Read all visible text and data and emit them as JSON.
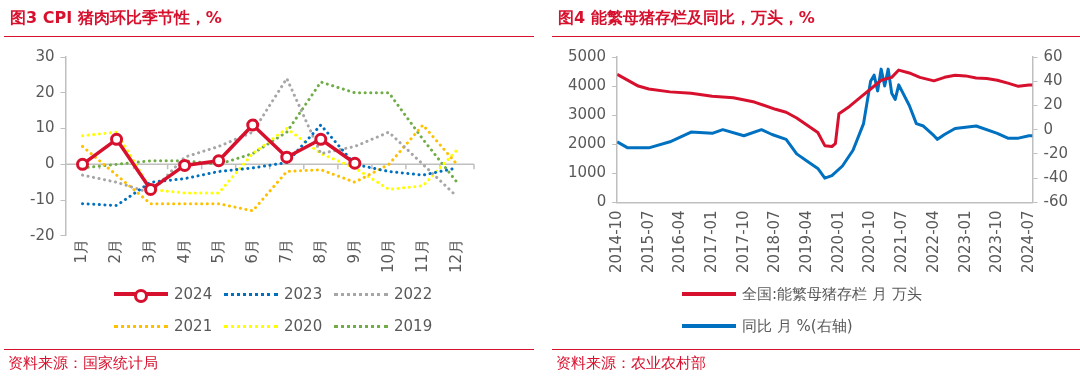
{
  "chart_data": [
    {
      "type": "line",
      "title": "图3 CPI 猪肉环比季节性，%",
      "categories": [
        "1月",
        "2月",
        "3月",
        "4月",
        "5月",
        "6月",
        "7月",
        "8月",
        "9月",
        "10月",
        "11月",
        "12月"
      ],
      "ylim": [
        -20,
        30
      ],
      "yticks": [
        -20,
        -10,
        0,
        10,
        20,
        30
      ],
      "grid": false,
      "legend": "bottom",
      "ref_lines": [
        {
          "axis": "y",
          "value": 0,
          "color": "#bfbfbf"
        }
      ],
      "series": [
        {
          "name": "2024",
          "color": "#d7102e",
          "marker": "circle",
          "line_style": "solid",
          "values": [
            0,
            7,
            -7,
            -0.3,
            1,
            11,
            2,
            7,
            0.3,
            null,
            null,
            null
          ]
        },
        {
          "name": "2023",
          "color": "#0070c0",
          "marker": "none",
          "line_style": "dotted",
          "values": [
            -11,
            -11.5,
            -5,
            -4,
            -2,
            -1,
            0.5,
            11,
            0,
            -2,
            -3,
            -1
          ]
        },
        {
          "name": "2022",
          "color": "#a6a6a6",
          "marker": "none",
          "line_style": "dotted",
          "values": [
            -3,
            -5,
            -8,
            2,
            5,
            9,
            24,
            3,
            5,
            9,
            0,
            -9
          ]
        },
        {
          "name": "2021",
          "color": "#ffc000",
          "marker": "none",
          "line_style": "dotted",
          "values": [
            5,
            -3,
            -11,
            -11,
            -11,
            -13,
            -2,
            -1.5,
            -5,
            0,
            11,
            0
          ]
        },
        {
          "name": "2020",
          "color": "#ffff00",
          "marker": "none",
          "line_style": "dotted",
          "values": [
            8,
            9,
            -7,
            -8,
            -8,
            3,
            10,
            3,
            -1,
            -7,
            -6,
            4
          ]
        },
        {
          "name": "2019",
          "color": "#70ad47",
          "marker": "none",
          "line_style": "dotted",
          "values": [
            -1,
            0,
            1,
            1,
            0,
            3,
            9,
            23,
            20,
            20,
            7,
            -5
          ]
        }
      ],
      "annotations": [
        "资料来源：国家统计局"
      ]
    },
    {
      "type": "line",
      "title": "图4 能繁母猪存栏及同比，万头，%",
      "xlim": [
        "2014-10",
        "2024-08"
      ],
      "xticks": [
        "2014-10",
        "2015-07",
        "2016-04",
        "2017-01",
        "2017-10",
        "2018-07",
        "2019-04",
        "2020-01",
        "2020-10",
        "2021-07",
        "2022-04",
        "2023-01",
        "2023-10",
        "2024-07"
      ],
      "ylim": [
        0,
        5000
      ],
      "yticks": [
        0,
        1000,
        2000,
        3000,
        4000,
        5000
      ],
      "y2lim": [
        -60,
        60
      ],
      "y2ticks": [
        -60,
        -40,
        -20,
        0,
        20,
        40,
        60
      ],
      "grid": false,
      "legend": "bottom",
      "series": [
        {
          "name": "全国:能繁母猪存栏 月 万头",
          "color": "#d7102e",
          "line_style": "solid",
          "x": [
            "2014-10",
            "2015-04",
            "2015-07",
            "2016-01",
            "2016-07",
            "2017-01",
            "2017-07",
            "2018-01",
            "2018-07",
            "2018-10",
            "2019-01",
            "2019-04",
            "2019-07",
            "2019-09",
            "2019-11",
            "2019-12",
            "2020-01",
            "2020-04",
            "2020-07",
            "2020-10",
            "2021-01",
            "2021-04",
            "2021-06",
            "2021-09",
            "2021-12",
            "2022-04",
            "2022-07",
            "2022-10",
            "2023-01",
            "2023-04",
            "2023-07",
            "2023-10",
            "2024-01",
            "2024-04",
            "2024-07",
            "2024-08"
          ],
          "values": [
            4400,
            4000,
            3900,
            3800,
            3750,
            3650,
            3600,
            3450,
            3200,
            3100,
            2900,
            2650,
            2400,
            1950,
            1920,
            2020,
            3050,
            3300,
            3600,
            3900,
            4200,
            4300,
            4550,
            4450,
            4300,
            4180,
            4300,
            4370,
            4350,
            4280,
            4260,
            4200,
            4100,
            3990,
            4040,
            4040
          ]
        },
        {
          "name": "同比 月 %(右轴)",
          "color": "#0070c0",
          "line_style": "solid",
          "axis": "y2",
          "x": [
            "2014-10",
            "2015-01",
            "2015-07",
            "2016-01",
            "2016-07",
            "2017-01",
            "2017-04",
            "2017-10",
            "2018-03",
            "2018-06",
            "2018-10",
            "2019-01",
            "2019-04",
            "2019-07",
            "2019-09",
            "2019-11",
            "2020-02",
            "2020-05",
            "2020-08",
            "2020-10",
            "2020-11",
            "2020-12",
            "2021-01",
            "2021-02",
            "2021-03",
            "2021-04",
            "2021-05",
            "2021-06",
            "2021-09",
            "2021-11",
            "2022-01",
            "2022-04",
            "2022-05",
            "2022-07",
            "2022-10",
            "2023-04",
            "2023-10",
            "2024-01",
            "2024-04",
            "2024-07",
            "2024-08"
          ],
          "values": [
            -10,
            -15,
            -15,
            -10,
            -2,
            -3,
            0,
            -5,
            0,
            -4,
            -8,
            -20,
            -26,
            -32,
            -40,
            -38,
            -30,
            -17,
            5,
            40,
            45,
            32,
            50,
            36,
            50,
            30,
            25,
            37,
            20,
            5,
            3,
            -5,
            -8,
            -4,
            1,
            3,
            -3,
            -7,
            -7,
            -5,
            -5
          ]
        }
      ],
      "annotations": [
        "资料来源：农业农村部"
      ]
    }
  ]
}
